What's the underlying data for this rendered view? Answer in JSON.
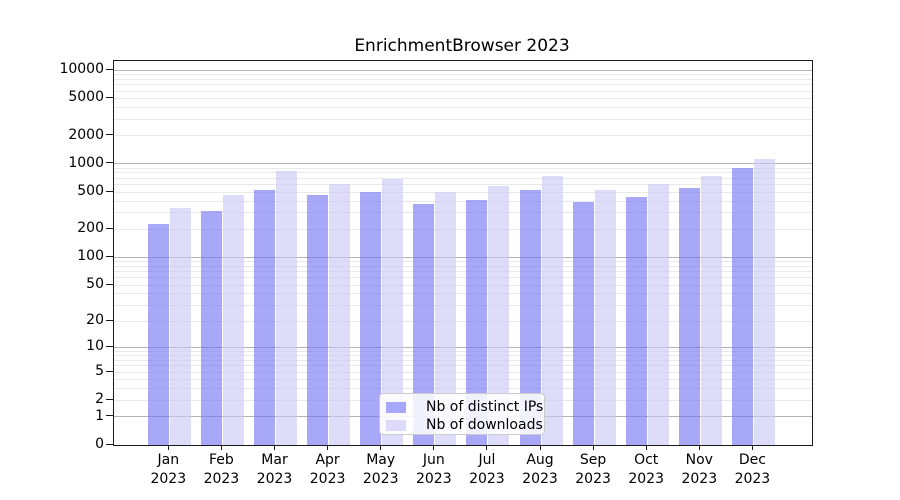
{
  "chart_data": {
    "type": "bar",
    "title": "EnrichmentBrowser 2023",
    "months": [
      "Jan",
      "Feb",
      "Mar",
      "Apr",
      "May",
      "Jun",
      "Jul",
      "Aug",
      "Sep",
      "Oct",
      "Nov",
      "Dec"
    ],
    "year": "2023",
    "categories": [
      "Jan 2023",
      "Feb 2023",
      "Mar 2023",
      "Apr 2023",
      "May 2023",
      "Jun 2023",
      "Jul 2023",
      "Aug 2023",
      "Sep 2023",
      "Oct 2023",
      "Nov 2023",
      "Dec 2023"
    ],
    "series": [
      {
        "name": "Nb of distinct IPs",
        "color": "#a8a8fa",
        "bar_fill": "rgba(115,115,246,0.62)",
        "values": [
          225,
          310,
          520,
          460,
          500,
          370,
          410,
          525,
          390,
          445,
          555,
          900
        ]
      },
      {
        "name": "Nb of downloads",
        "color": "#dcdcfa",
        "bar_fill": "rgba(200,200,247,0.62)",
        "values": [
          335,
          470,
          850,
          615,
          685,
          505,
          580,
          740,
          525,
          615,
          745,
          1115
        ]
      }
    ],
    "yscale": "log1p",
    "yticks": [
      0,
      1,
      2,
      5,
      10,
      20,
      50,
      100,
      200,
      500,
      1000,
      2000,
      5000,
      10000
    ],
    "ylim": [
      0,
      12500
    ],
    "xlabel": "",
    "ylabel": "",
    "grid": "horizontal, major gray at powers of 10, light minors",
    "legend_position": "lower center"
  },
  "colors": {
    "major_grid": "#b4b4b4",
    "minor_grid": "#e9e9e9",
    "axis": "#1a1a1a",
    "background": "#ffffff"
  }
}
